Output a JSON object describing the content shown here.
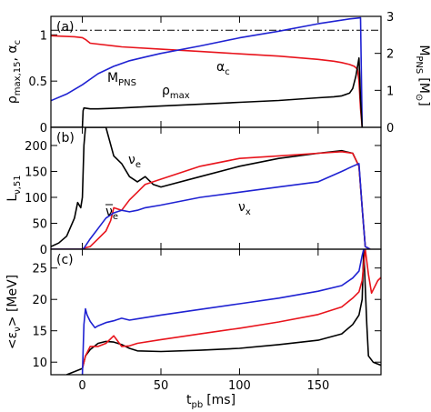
{
  "colors": {
    "black": "#000000",
    "red": "#e8141c",
    "blue": "#1f22d2"
  },
  "xaxis": {
    "label": "t",
    "label_sub": "pb",
    "label_unit": "[ms]",
    "range": [
      -20,
      190
    ],
    "ticks": [
      0,
      50,
      100,
      150
    ],
    "tick_labels": [
      "0",
      "50",
      "100",
      "150"
    ]
  },
  "chart_data": [
    {
      "panel_label": "(a)",
      "type": "line",
      "ylabel_left": "ρ",
      "ylabel_left_sub": "max,15",
      "ylabel_left_suffix": ", α",
      "ylabel_left_suffix_sub": "c",
      "ylim": [
        0,
        1.2
      ],
      "yticks": [
        0,
        0.5,
        1
      ],
      "ytick_labels": [
        "0",
        "0.5",
        "1"
      ],
      "right_axis": {
        "label": "M",
        "label_sub": "PNS",
        "label_unit": "[M",
        "label_unit_sub": "⊙",
        "label_unit_close": "]",
        "ylim": [
          0,
          3
        ],
        "ticks": [
          0,
          1,
          2,
          3
        ],
        "tick_labels": [
          "0",
          "1",
          "2",
          "3"
        ]
      },
      "reference_line": {
        "y": 1.05,
        "style": "dash-dot"
      },
      "series": [
        {
          "color": "red",
          "axis": "left",
          "label_text": "α",
          "label_sub": "c",
          "x": [
            -20,
            -5,
            0,
            2,
            5,
            25,
            50,
            75,
            100,
            125,
            150,
            160,
            165,
            170,
            173,
            175,
            176,
            177,
            178
          ],
          "y": [
            0.99,
            0.98,
            0.97,
            0.95,
            0.91,
            0.87,
            0.845,
            0.82,
            0.795,
            0.77,
            0.735,
            0.715,
            0.7,
            0.68,
            0.66,
            0.63,
            0.5,
            0.2,
            0.0
          ]
        },
        {
          "color": "blue",
          "axis": "right",
          "label_text": "M",
          "label_sub": "PNS",
          "x": [
            -20,
            -10,
            0,
            5,
            10,
            20,
            30,
            40,
            50,
            75,
            100,
            125,
            150,
            170,
            177,
            178
          ],
          "y": [
            0.72,
            0.9,
            1.15,
            1.3,
            1.45,
            1.65,
            1.8,
            1.9,
            2.0,
            2.2,
            2.42,
            2.6,
            2.8,
            2.93,
            2.96,
            0.0
          ]
        },
        {
          "color": "black",
          "axis": "left",
          "label_text": "ρ",
          "label_sub": "max",
          "x": [
            -20,
            0,
            0.5,
            1,
            5,
            10,
            25,
            50,
            75,
            100,
            125,
            150,
            160,
            165,
            170,
            172,
            174,
            176,
            177,
            178
          ],
          "y": [
            0.0,
            0.0,
            0.18,
            0.21,
            0.2,
            0.2,
            0.21,
            0.23,
            0.25,
            0.27,
            0.29,
            0.32,
            0.33,
            0.34,
            0.37,
            0.42,
            0.55,
            0.75,
            0.3,
            0.0
          ]
        }
      ]
    },
    {
      "panel_label": "(b)",
      "type": "line",
      "ylabel_left": "L",
      "ylabel_left_sub": "ν,51",
      "ylim": [
        0,
        235
      ],
      "yticks": [
        0,
        50,
        100,
        150,
        200
      ],
      "ytick_labels": [
        "0",
        "50",
        "100",
        "150",
        "200"
      ],
      "series": [
        {
          "color": "black",
          "label_text": "ν",
          "label_sub": "e",
          "x": [
            -20,
            -15,
            -10,
            -5,
            -3,
            -1,
            0,
            1,
            2,
            3,
            4,
            10,
            15,
            20,
            25,
            30,
            35,
            40,
            45,
            50,
            75,
            100,
            125,
            150,
            165,
            172,
            176,
            178,
            180,
            183
          ],
          "y": [
            5,
            12,
            25,
            60,
            90,
            80,
            100,
            200,
            235,
            235,
            235,
            235,
            235,
            180,
            165,
            140,
            130,
            140,
            125,
            120,
            140,
            160,
            175,
            185,
            190,
            185,
            160,
            80,
            5,
            0
          ]
        },
        {
          "color": "red",
          "label_text": "ν",
          "label_sub": "e",
          "label_overline": true,
          "x": [
            -20,
            0,
            1,
            5,
            10,
            15,
            18,
            20,
            25,
            30,
            35,
            40,
            45,
            50,
            75,
            100,
            125,
            150,
            165,
            172,
            176,
            178,
            180,
            183
          ],
          "y": [
            0,
            0,
            2,
            5,
            20,
            35,
            55,
            80,
            75,
            95,
            110,
            125,
            130,
            135,
            160,
            175,
            180,
            185,
            188,
            185,
            160,
            80,
            5,
            0
          ]
        },
        {
          "color": "blue",
          "label_text": "ν",
          "label_sub": "x",
          "x": [
            -20,
            0,
            1,
            5,
            10,
            15,
            20,
            25,
            30,
            35,
            40,
            50,
            75,
            100,
            125,
            150,
            165,
            172,
            176,
            178,
            180,
            183
          ],
          "y": [
            0,
            0,
            2,
            20,
            40,
            60,
            70,
            75,
            72,
            75,
            80,
            85,
            100,
            110,
            120,
            130,
            150,
            160,
            165,
            80,
            5,
            0
          ]
        }
      ]
    },
    {
      "panel_label": "(c)",
      "type": "line",
      "ylabel_left": "<ε",
      "ylabel_left_sub": "ν",
      "ylabel_left_suffix": "> [MeV]",
      "ylim": [
        8,
        28
      ],
      "yticks": [
        10,
        15,
        20,
        25
      ],
      "ytick_labels": [
        "10",
        "15",
        "20",
        "25"
      ],
      "series": [
        {
          "color": "black",
          "x": [
            -10,
            -5,
            0,
            2,
            5,
            10,
            15,
            20,
            25,
            30,
            35,
            50,
            75,
            100,
            125,
            150,
            165,
            172,
            176,
            178,
            179,
            180,
            181,
            182,
            185,
            190
          ],
          "y": [
            8,
            8.5,
            9,
            11,
            12,
            13,
            13.3,
            13.2,
            12.8,
            12.2,
            11.8,
            11.7,
            11.9,
            12.2,
            12.8,
            13.5,
            14.5,
            16,
            17.5,
            20,
            28,
            22,
            16,
            11,
            10,
            9.5
          ]
        },
        {
          "color": "red",
          "x": [
            0,
            2,
            5,
            10,
            15,
            20,
            25,
            30,
            35,
            50,
            75,
            100,
            125,
            150,
            165,
            172,
            176,
            178,
            180,
            182,
            184,
            188,
            190
          ],
          "y": [
            9,
            11,
            12.5,
            12.5,
            13,
            14.2,
            12.5,
            12.6,
            13,
            13.6,
            14.5,
            15.4,
            16.4,
            17.6,
            18.8,
            20.2,
            21.2,
            23,
            28,
            24,
            21,
            23,
            23.5
          ]
        },
        {
          "color": "blue",
          "x": [
            0,
            1,
            2,
            3,
            5,
            8,
            10,
            15,
            20,
            25,
            30,
            35,
            50,
            75,
            100,
            125,
            150,
            165,
            172,
            176,
            178,
            179,
            180
          ],
          "y": [
            8,
            16,
            18.5,
            17.5,
            16.5,
            15.5,
            15.8,
            16.3,
            16.6,
            17,
            16.7,
            16.9,
            17.5,
            18.4,
            19.3,
            20.2,
            21.3,
            22.2,
            23.4,
            24.5,
            27,
            28,
            28
          ]
        }
      ]
    }
  ]
}
